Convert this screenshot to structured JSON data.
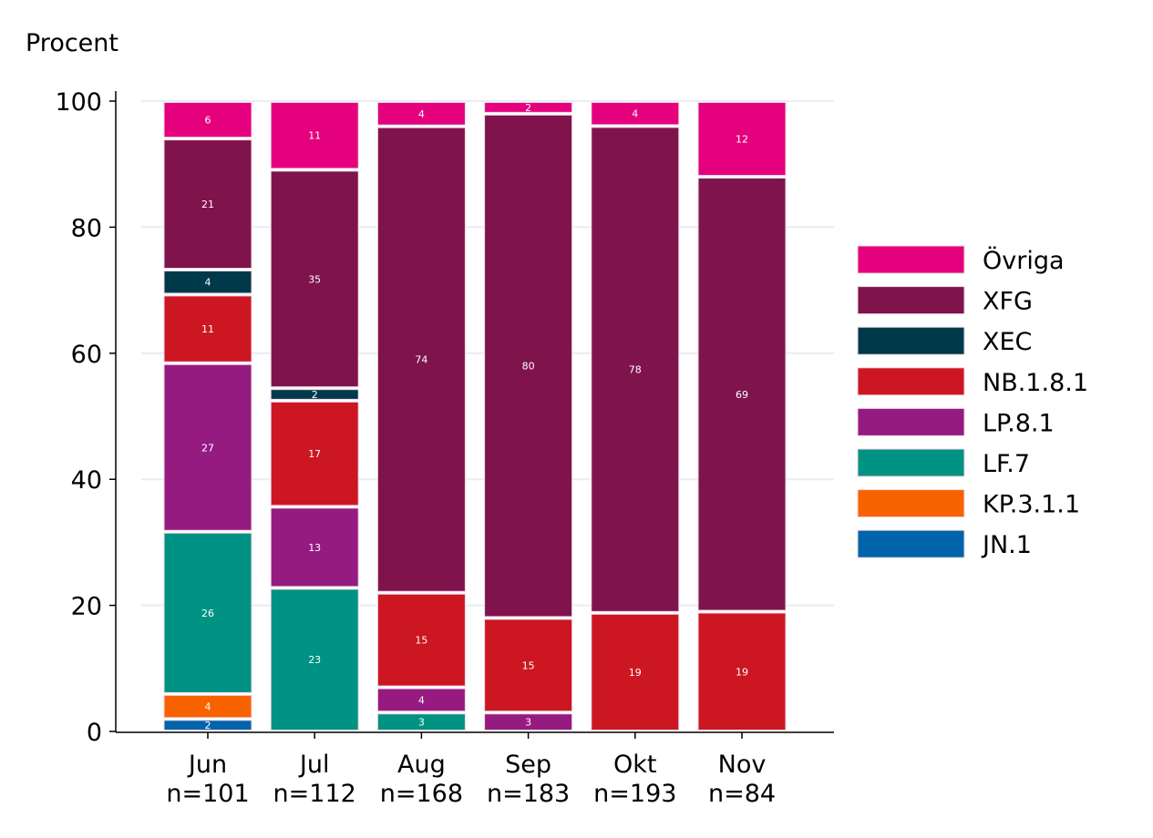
{
  "chart_data": {
    "type": "bar",
    "stacked": true,
    "ylabel": "Procent",
    "ylim": [
      0,
      100
    ],
    "yticks": [
      0,
      20,
      40,
      60,
      80,
      100
    ],
    "grid": true,
    "legend_position": "right",
    "categories": [
      "Jun",
      "Jul",
      "Aug",
      "Sep",
      "Okt",
      "Nov"
    ],
    "category_counts": [
      "n=101",
      "n=112",
      "n=168",
      "n=183",
      "n=193",
      "n=84"
    ],
    "series": [
      {
        "name": "JN.1",
        "color": "#0063ac",
        "values": [
          2,
          0,
          0,
          0,
          0,
          0
        ]
      },
      {
        "name": "KP.3.1.1",
        "color": "#f86300",
        "values": [
          4,
          0,
          0,
          0,
          0,
          0
        ]
      },
      {
        "name": "LF.7",
        "color": "#009282",
        "values": [
          26,
          23,
          3,
          0,
          0,
          0
        ]
      },
      {
        "name": "LP.8.1",
        "color": "#951b81",
        "values": [
          27,
          13,
          4,
          3,
          0,
          0
        ]
      },
      {
        "name": "NB.1.8.1",
        "color": "#cc1722",
        "values": [
          11,
          17,
          15,
          15,
          19,
          19
        ]
      },
      {
        "name": "XEC",
        "color": "#003a4a",
        "values": [
          4,
          2,
          0,
          0,
          0,
          0
        ]
      },
      {
        "name": "XFG",
        "color": "#7f134c",
        "values": [
          21,
          35,
          74,
          80,
          78,
          69
        ]
      },
      {
        "name": "Övriga",
        "color": "#e5007e",
        "values": [
          6,
          11,
          4,
          2,
          4,
          12
        ]
      }
    ]
  }
}
